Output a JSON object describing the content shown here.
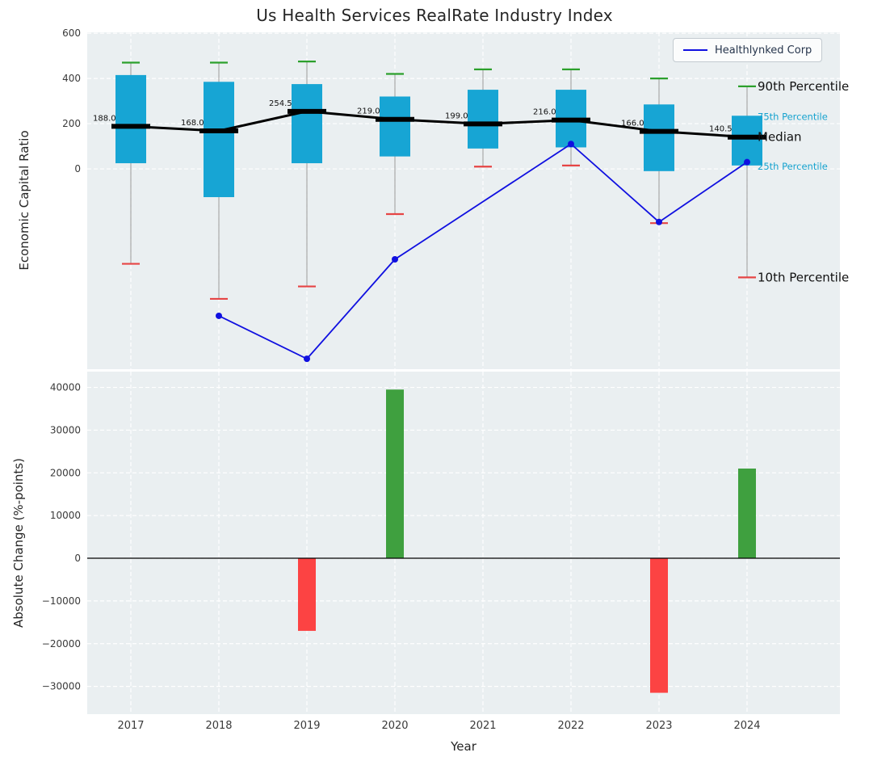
{
  "title": "Us Health Services RealRate Industry Index",
  "legend": {
    "company": "Healthlynked Corp"
  },
  "colors": {
    "panel_bg": "#eaeff1",
    "grid": "#ffffff",
    "box_fill": "#17a5d4",
    "median": "#000000",
    "p90_cap": "#2ca02c",
    "p10_cap": "#e64545",
    "whisker": "#999999",
    "company_line": "#1010e0",
    "bar_positive": "#3fa03f",
    "bar_negative": "#fc4343",
    "tick_text": "#3a3a3a",
    "text": "#262626",
    "cyan_label": "#17a3cf"
  },
  "chart_data": [
    {
      "type": "boxplot+line",
      "title": "Us Health Services RealRate Industry Index",
      "ylabel": "Economic Capital Ratio",
      "categories": [
        "2017",
        "2018",
        "2019",
        "2020",
        "2021",
        "2022",
        "2023",
        "2024"
      ],
      "yticks": [
        600,
        400,
        200,
        0
      ],
      "ylim": [
        -886,
        604
      ],
      "grid": true,
      "percentiles": {
        "p90": [
          470,
          470,
          475,
          420,
          440,
          440,
          400,
          365
        ],
        "p75": [
          415,
          385,
          375,
          320,
          350,
          350,
          285,
          235
        ],
        "median": [
          188.0,
          168.0,
          254.5,
          219.0,
          199.0,
          216.0,
          166.0,
          140.5
        ],
        "p25": [
          25,
          -125,
          25,
          55,
          90,
          95,
          -10,
          15
        ],
        "p10": [
          -420,
          -575,
          -520,
          -200,
          10,
          15,
          -240,
          -480
        ]
      },
      "series": [
        {
          "name": "Healthlynked Corp",
          "x": [
            "2018",
            "2019",
            "2020",
            "2022",
            "2023",
            "2024"
          ],
          "values": [
            -650,
            -840,
            -400,
            110,
            -235,
            30
          ]
        }
      ],
      "annotations": [
        {
          "label": "90th Percentile",
          "anchor": "p90",
          "style": "dark"
        },
        {
          "label": "75th Percentile",
          "anchor": "p75",
          "style": "cyan"
        },
        {
          "label": "Median",
          "anchor": "median",
          "style": "dark"
        },
        {
          "label": "25th Percentile",
          "anchor": "p25",
          "style": "cyan"
        },
        {
          "label": "10th Percentile",
          "anchor": "p10",
          "style": "dark"
        }
      ],
      "legend_entries": [
        "Healthlynked Corp"
      ],
      "legend_position": "upper right"
    },
    {
      "type": "bar",
      "ylabel": "Absolute Change (%-points)",
      "xlabel": "Year",
      "categories": [
        "2017",
        "2018",
        "2019",
        "2020",
        "2021",
        "2022",
        "2023",
        "2024"
      ],
      "values": [
        0,
        0,
        -17000,
        39500,
        0,
        0,
        -31500,
        21000
      ],
      "yticks": [
        40000,
        30000,
        20000,
        10000,
        0,
        -10000,
        -20000,
        -30000
      ],
      "ylim": [
        -36500,
        43700
      ],
      "grid": true
    }
  ]
}
